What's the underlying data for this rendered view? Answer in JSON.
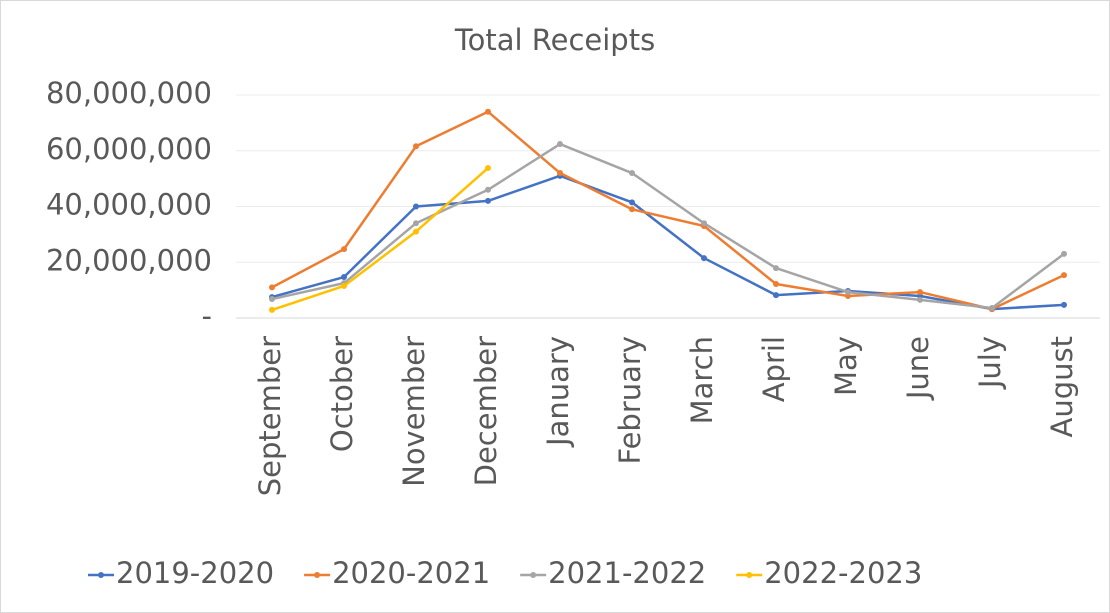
{
  "chart_data": {
    "type": "line",
    "title": "Total Receipts",
    "categories": [
      "September",
      "October",
      "November",
      "December",
      "January",
      "February",
      "March",
      "April",
      "May",
      "June",
      "July",
      "August"
    ],
    "series": [
      {
        "name": "2019-2020",
        "color": "#4472c4",
        "values": [
          7500000,
          14700000,
          40000000,
          42000000,
          51000000,
          41500000,
          21500000,
          8200000,
          9700000,
          7900000,
          3200000,
          4700000
        ]
      },
      {
        "name": "2020-2021",
        "color": "#ed7d31",
        "values": [
          11000000,
          24700000,
          61600000,
          74000000,
          52000000,
          39000000,
          33000000,
          12200000,
          7900000,
          9300000,
          3200000,
          15400000
        ]
      },
      {
        "name": "2021-2022",
        "color": "#a5a5a5",
        "values": [
          6800000,
          12500000,
          34000000,
          46000000,
          62400000,
          52000000,
          34000000,
          17900000,
          9300000,
          6500000,
          3600000,
          23000000
        ]
      },
      {
        "name": "2022-2023",
        "color": "#ffc000",
        "values": [
          2900000,
          11500000,
          31000000,
          53800000,
          null,
          null,
          null,
          null,
          null,
          null,
          null,
          null
        ]
      }
    ],
    "ylim": [
      0,
      80000000
    ],
    "yticks": [
      {
        "value": 0,
        "label": "-"
      },
      {
        "value": 20000000,
        "label": "20,000,000"
      },
      {
        "value": 40000000,
        "label": "40,000,000"
      },
      {
        "value": 60000000,
        "label": "60,000,000"
      },
      {
        "value": 80000000,
        "label": "80,000,000"
      }
    ],
    "grid": true,
    "legend": "bottom"
  }
}
